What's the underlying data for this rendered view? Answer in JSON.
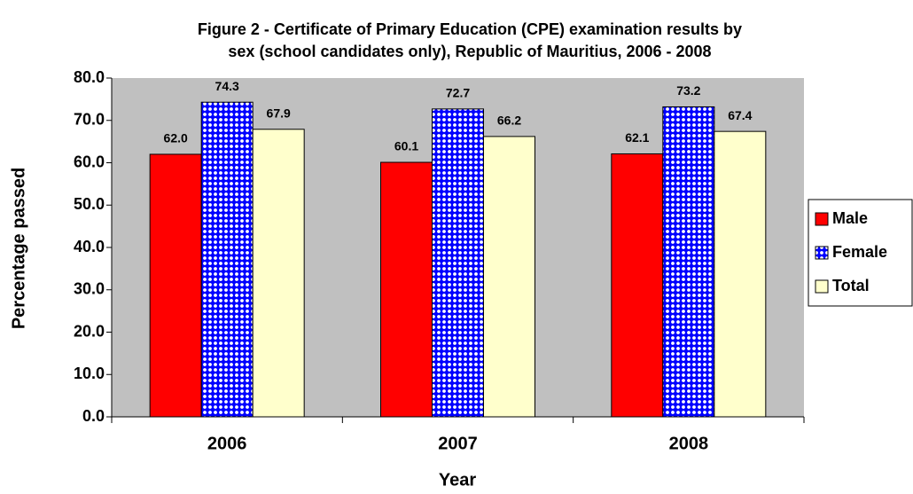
{
  "chart_data": {
    "type": "bar",
    "title": [
      "Figure 2 - Certificate of Primary Education (CPE) examination results by",
      "sex (school candidates only), Republic of Mauritius, 2006 - 2008"
    ],
    "xlabel": "Year",
    "ylabel": "Percentage passed",
    "categories": [
      "2006",
      "2007",
      "2008"
    ],
    "series": [
      {
        "name": "Male",
        "color": "#ff0000",
        "values": [
          62.0,
          60.1,
          62.1
        ],
        "value_labels": [
          "62.0",
          "60.1",
          "62.1"
        ]
      },
      {
        "name": "Female",
        "color": "#0000ff",
        "pattern": "dots",
        "values": [
          74.3,
          72.7,
          73.2
        ],
        "value_labels": [
          "74.3",
          "72.7",
          "73.2"
        ]
      },
      {
        "name": "Total",
        "color": "#ffffcc",
        "values": [
          67.9,
          66.2,
          67.4
        ],
        "value_labels": [
          "67.9",
          "66.2",
          "67.4"
        ]
      }
    ],
    "ylim": [
      0,
      80
    ],
    "yticks": [
      {
        "value": 0,
        "label": "0.0"
      },
      {
        "value": 10,
        "label": "10.0"
      },
      {
        "value": 20,
        "label": "20.0"
      },
      {
        "value": 30,
        "label": "30.0"
      },
      {
        "value": 40,
        "label": "40.0"
      },
      {
        "value": 50,
        "label": "50.0"
      },
      {
        "value": 60,
        "label": "60.0"
      },
      {
        "value": 70,
        "label": "70.0"
      },
      {
        "value": 80,
        "label": "80.0"
      }
    ],
    "plot_background": "#c0c0c0",
    "grid": false,
    "legend": "right"
  }
}
